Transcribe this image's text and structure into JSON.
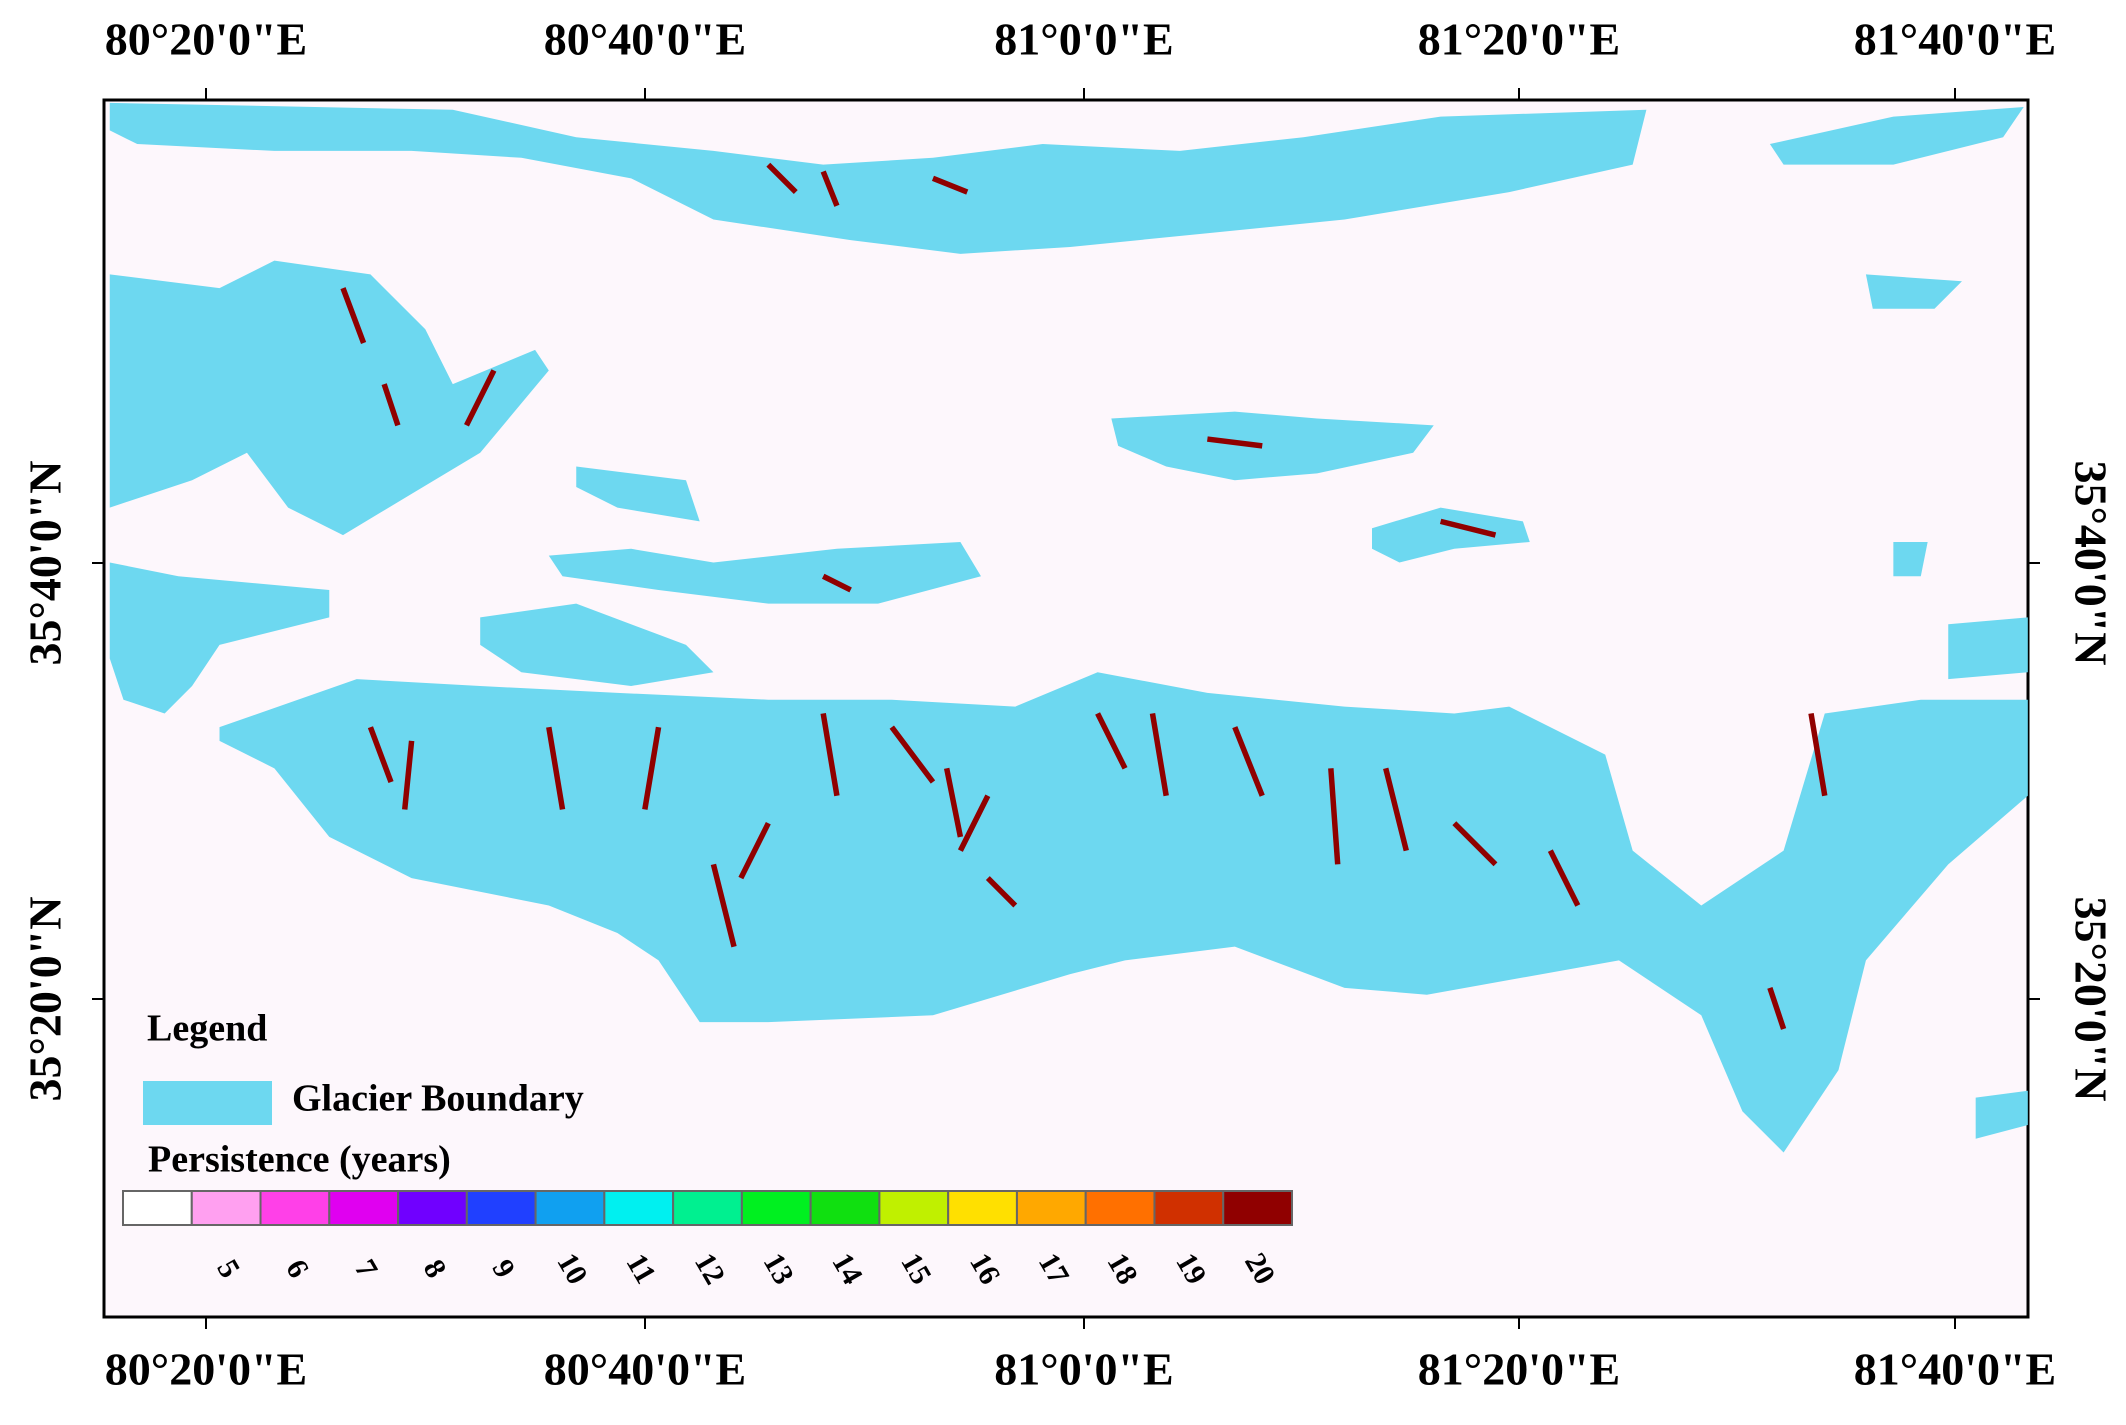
{
  "map": {
    "top_labels": [
      "80°20'0\"E",
      "80°40'0\"E",
      "81°0'0\"E",
      "81°20'0\"E",
      "81°40'0\"E"
    ],
    "bottom_labels": [
      "80°20'0\"E",
      "80°40'0\"E",
      "81°0'0\"E",
      "81°20'0\"E",
      "81°40'0\"E"
    ],
    "left_labels": [
      "35°40'0\"N",
      "35°20'0\"N"
    ],
    "right_labels": [
      "35°40'0\"N",
      "35°20'0\"N"
    ],
    "glacier_color": "#6dd8f0"
  },
  "legend": {
    "title": "Legend",
    "boundary_label": "Glacier Boundary",
    "persistence_title": "Persistence  (years)",
    "colors": [
      "#ffffff",
      "#ffa0f0",
      "#ff40e8",
      "#e000f0",
      "#7000ff",
      "#2040ff",
      "#10a0f0",
      "#00f0f0",
      "#00f090",
      "#00f020",
      "#10e010",
      "#c0f000",
      "#ffe000",
      "#ffa800",
      "#ff7000",
      "#d03000",
      "#900000"
    ],
    "labels": [
      null,
      5,
      6,
      7,
      8,
      9,
      10,
      11,
      12,
      13,
      14,
      15,
      16,
      17,
      18,
      19,
      20
    ]
  }
}
